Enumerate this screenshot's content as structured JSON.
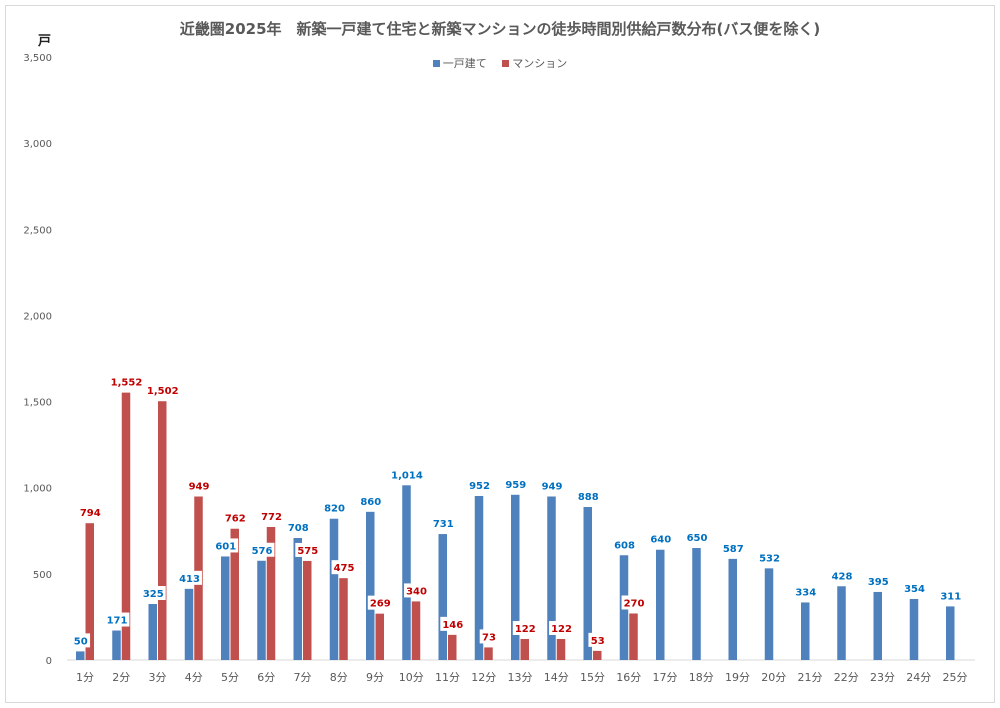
{
  "chart_data": {
    "type": "bar",
    "title": "近畿圏2025年　新築一戸建て住宅と新築マンションの徒歩時間別供給戸数分布(バス便を除く)",
    "ylabel": "戸",
    "xlabel": "",
    "ylim": [
      0,
      3500
    ],
    "yticks": [
      "0",
      "500",
      "1,000",
      "1,500",
      "2,000",
      "2,500",
      "3,000",
      "3,500"
    ],
    "grid": false,
    "legend": "top-center",
    "categories": [
      "1分",
      "2分",
      "3分",
      "4分",
      "5分",
      "6分",
      "7分",
      "8分",
      "9分",
      "10分",
      "11分",
      "12分",
      "13分",
      "14分",
      "15分",
      "16分",
      "17分",
      "18分",
      "19分",
      "20分",
      "21分",
      "22分",
      "23分",
      "24分",
      "25分"
    ],
    "series": [
      {
        "name": "一戸建て",
        "color": "#4f81bd",
        "label_color": "#0070c0",
        "values": [
          50,
          171,
          325,
          413,
          601,
          576,
          708,
          820,
          860,
          1014,
          731,
          952,
          959,
          949,
          888,
          608,
          640,
          650,
          587,
          532,
          334,
          428,
          395,
          354,
          311
        ],
        "labels": [
          "50",
          "171",
          "325",
          "413",
          "601",
          "576",
          "708",
          "820",
          "860",
          "1,014",
          "731",
          "952",
          "959",
          "949",
          "888",
          "608",
          "640",
          "650",
          "587",
          "532",
          "334",
          "428",
          "395",
          "354",
          "311"
        ]
      },
      {
        "name": "マンション",
        "color": "#c0504d",
        "label_color": "#c00000",
        "values": [
          794,
          1552,
          1502,
          949,
          762,
          772,
          575,
          475,
          269,
          340,
          146,
          73,
          122,
          122,
          53,
          270,
          null,
          null,
          null,
          null,
          null,
          null,
          null,
          null,
          null
        ],
        "labels": [
          "794",
          "1,552",
          "1,502",
          "949",
          "762",
          "772",
          "575",
          "475",
          "269",
          "340",
          "146",
          "73",
          "122",
          "122",
          "53",
          "270",
          null,
          null,
          null,
          null,
          null,
          null,
          null,
          null,
          null
        ]
      }
    ]
  }
}
